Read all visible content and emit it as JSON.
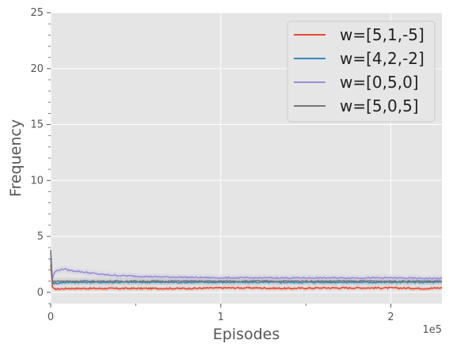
{
  "chart_data": {
    "type": "line",
    "xlabel": "Episodes",
    "ylabel": "Frequency",
    "x_offset_label": "1e5",
    "xlim": [
      0,
      2.3
    ],
    "ylim": [
      -1,
      25
    ],
    "x_ticks": [
      0,
      1,
      2
    ],
    "x_tick_labels": [
      "0",
      "1",
      "2"
    ],
    "y_ticks": [
      0,
      5,
      10,
      15,
      20,
      25
    ],
    "y_tick_labels": [
      "0",
      "5",
      "10",
      "15",
      "20",
      "25"
    ],
    "grid": true,
    "legend_position": "top-right",
    "series": [
      {
        "name": "w=[5,1,-5]",
        "color": "#e24a33",
        "x": [
          0,
          0.01,
          0.02,
          0.03,
          0.05,
          0.1,
          0.2,
          0.4,
          0.6,
          0.8,
          1.0,
          1.2,
          1.4,
          1.6,
          1.8,
          2.0,
          2.2,
          2.3
        ],
        "values": [
          2.5,
          0.5,
          0.3,
          0.3,
          0.3,
          0.35,
          0.35,
          0.35,
          0.35,
          0.35,
          0.4,
          0.4,
          0.35,
          0.4,
          0.4,
          0.4,
          0.35,
          0.4
        ]
      },
      {
        "name": "w=[4,2,-2]",
        "color": "#348abd",
        "x": [
          0,
          0.01,
          0.02,
          0.03,
          0.05,
          0.1,
          0.2,
          0.4,
          0.6,
          0.8,
          1.0,
          1.2,
          1.4,
          1.6,
          1.8,
          2.0,
          2.2,
          2.3
        ],
        "values": [
          3.0,
          1.0,
          0.8,
          0.8,
          0.85,
          0.9,
          0.9,
          0.9,
          0.9,
          0.9,
          0.9,
          0.9,
          0.9,
          0.9,
          0.9,
          0.9,
          0.9,
          0.9
        ]
      },
      {
        "name": "w=[0,5,0]",
        "color": "#988ed5",
        "x": [
          0,
          0.01,
          0.02,
          0.03,
          0.05,
          0.08,
          0.1,
          0.2,
          0.3,
          0.4,
          0.6,
          0.8,
          1.0,
          1.2,
          1.4,
          1.6,
          1.8,
          2.0,
          2.2,
          2.3
        ],
        "values": [
          3.5,
          1.2,
          1.7,
          1.9,
          2.0,
          2.1,
          2.0,
          1.8,
          1.6,
          1.5,
          1.4,
          1.35,
          1.3,
          1.3,
          1.3,
          1.3,
          1.3,
          1.3,
          1.25,
          1.25
        ]
      },
      {
        "name": "w=[5,0,5]",
        "color": "#777777",
        "x": [
          0,
          0.01,
          0.02,
          0.03,
          0.05,
          0.1,
          0.2,
          0.4,
          0.6,
          0.8,
          1.0,
          1.2,
          1.4,
          1.6,
          1.8,
          2.0,
          2.2,
          2.3
        ],
        "values": [
          3.8,
          0.8,
          1.0,
          1.0,
          1.0,
          1.0,
          1.0,
          1.0,
          1.0,
          1.0,
          1.0,
          1.0,
          1.0,
          1.0,
          1.0,
          1.0,
          1.0,
          1.0
        ]
      }
    ]
  }
}
